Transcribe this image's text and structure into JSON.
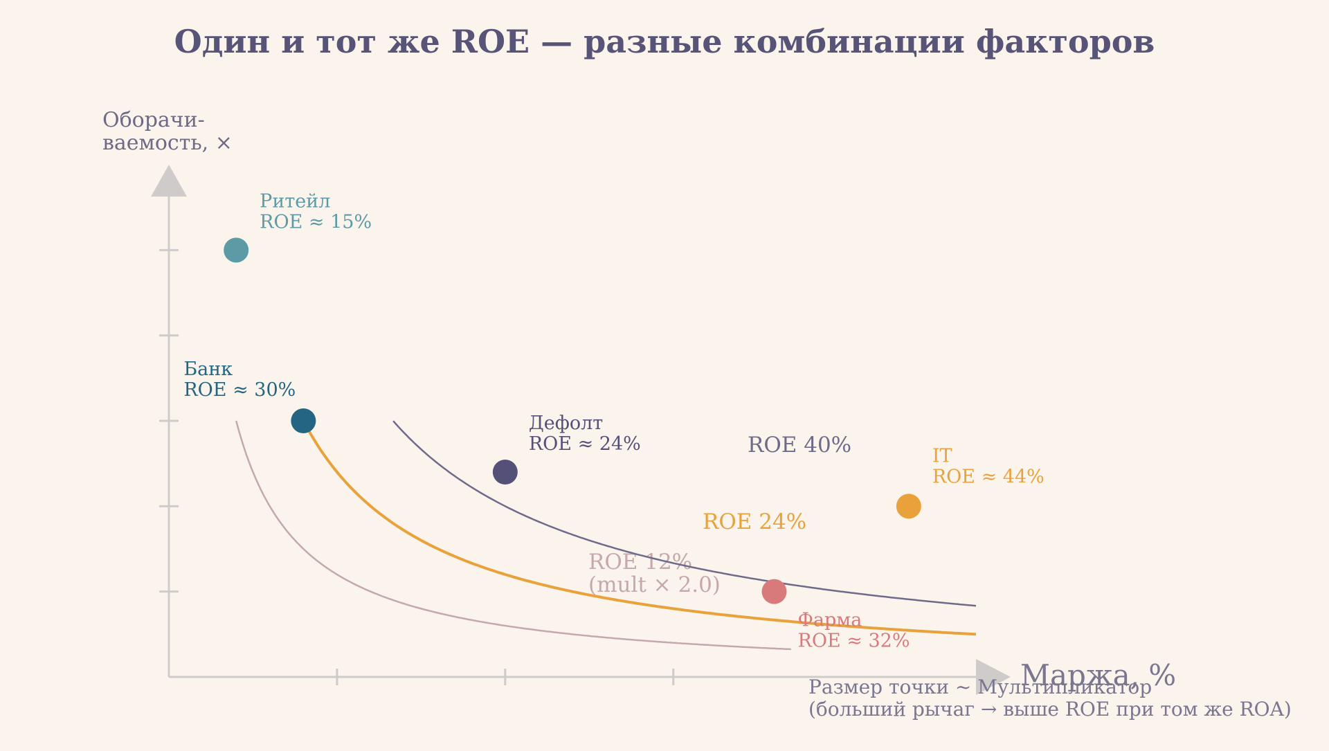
{
  "chart_data": {
    "type": "scatter",
    "title": "Один и тот же ROE — разные комбинации факторов",
    "ylabel_lines": [
      "Оборачи-",
      "ваемость, ×"
    ],
    "xlabel": "Маржа, %",
    "note_lines": [
      "Размер точки ~ Мультипликатор",
      "(больший рычаг → выше ROE при том же ROA)"
    ],
    "xlim": [
      0,
      24
    ],
    "ylim": [
      0,
      6
    ],
    "xticks": [
      5,
      10,
      15
    ],
    "yticks": [
      1,
      2,
      3,
      4,
      5
    ],
    "curves": [
      {
        "label": "ROE 12%",
        "label2": "(mult × 2.0)",
        "k": 6,
        "color": "#c4a8ac",
        "width": 2.5,
        "x_from": 2,
        "x_to": 18.5
      },
      {
        "label": "ROE 24%",
        "label2": "",
        "k": 12,
        "color": "#e9a23b",
        "width": 4,
        "x_from": 4,
        "x_to": 24
      },
      {
        "label": "ROE 40%",
        "label2": "",
        "k": 20,
        "color": "#6e6a8a",
        "width": 2.5,
        "x_from": 6.67,
        "x_to": 24
      }
    ],
    "points": [
      {
        "name": "Ритейл",
        "roe": "ROE ≈ 15%",
        "x": 2,
        "y": 5,
        "color": "#5c9aa6",
        "label_color": "#5c9aa6"
      },
      {
        "name": "Банк",
        "roe": "ROE ≈ 30%",
        "x": 4,
        "y": 3,
        "color": "#236582",
        "label_color": "#236582"
      },
      {
        "name": "Дефолт",
        "roe": "ROE ≈ 24%",
        "x": 10,
        "y": 2.4,
        "color": "#555078",
        "label_color": "#555078"
      },
      {
        "name": "IT",
        "roe": "ROE ≈ 44%",
        "x": 22,
        "y": 2,
        "color": "#e9a23b",
        "label_color": "#e9a23b"
      },
      {
        "name": "Фарма",
        "roe": "ROE ≈ 32%",
        "x": 18,
        "y": 1,
        "color": "#d87a7c",
        "label_color": "#d87a7c"
      }
    ],
    "axis_color": "#cfcbcb"
  }
}
